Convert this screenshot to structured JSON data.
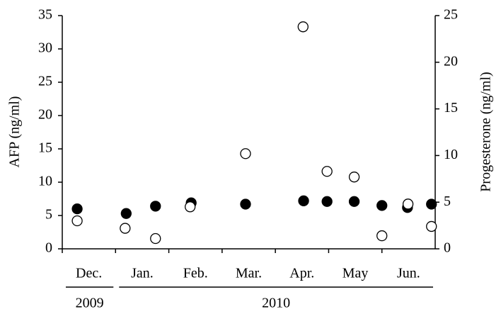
{
  "chart_data": {
    "type": "scatter",
    "y_label": "AFP (ng/ml)",
    "y2_label": "Progesterone (ng/ml)",
    "categories": [
      "Dec.",
      "Jan.",
      "Feb.",
      "Mar.",
      "Apr.",
      "May",
      "Jun."
    ],
    "x_groups": [
      {
        "label": "2009",
        "from": 0,
        "to": 1
      },
      {
        "label": "2010",
        "from": 1,
        "to": 7
      }
    ],
    "xlim": [
      0,
      7
    ],
    "ylim": [
      0,
      35
    ],
    "yticks": [
      0,
      5,
      10,
      15,
      20,
      25,
      30,
      35
    ],
    "y2lim": [
      0,
      25
    ],
    "y2ticks": [
      0,
      5,
      10,
      15,
      20,
      25
    ],
    "series": [
      {
        "color": "#000000",
        "filled": true,
        "x": [
          0.28,
          1.2,
          1.75,
          2.42,
          3.44,
          4.53,
          4.97,
          5.48,
          6.0,
          6.48,
          6.93
        ],
        "values": [
          6.0,
          5.3,
          6.4,
          6.9,
          6.7,
          7.2,
          7.1,
          7.1,
          6.5,
          6.2,
          6.7
        ]
      },
      {
        "color": "#000000",
        "filled": false,
        "axis": "y2",
        "x": [
          0.28,
          1.18,
          1.75,
          2.4,
          3.44,
          4.52,
          4.97,
          5.48,
          6.0,
          6.49,
          6.93
        ],
        "values": [
          3.0,
          2.2,
          1.1,
          4.5,
          10.2,
          23.8,
          8.3,
          7.7,
          1.4,
          4.8,
          2.4
        ]
      }
    ]
  }
}
